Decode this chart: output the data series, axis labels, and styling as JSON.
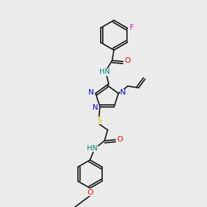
{
  "bg_color": "#ebebeb",
  "bond_color": "#1a1a1a",
  "atoms": {
    "F": "#ff00cc",
    "O": "#ff0000",
    "N": "#0000ee",
    "S": "#cccc00",
    "NH": "#008080",
    "C": "#1a1a1a"
  }
}
